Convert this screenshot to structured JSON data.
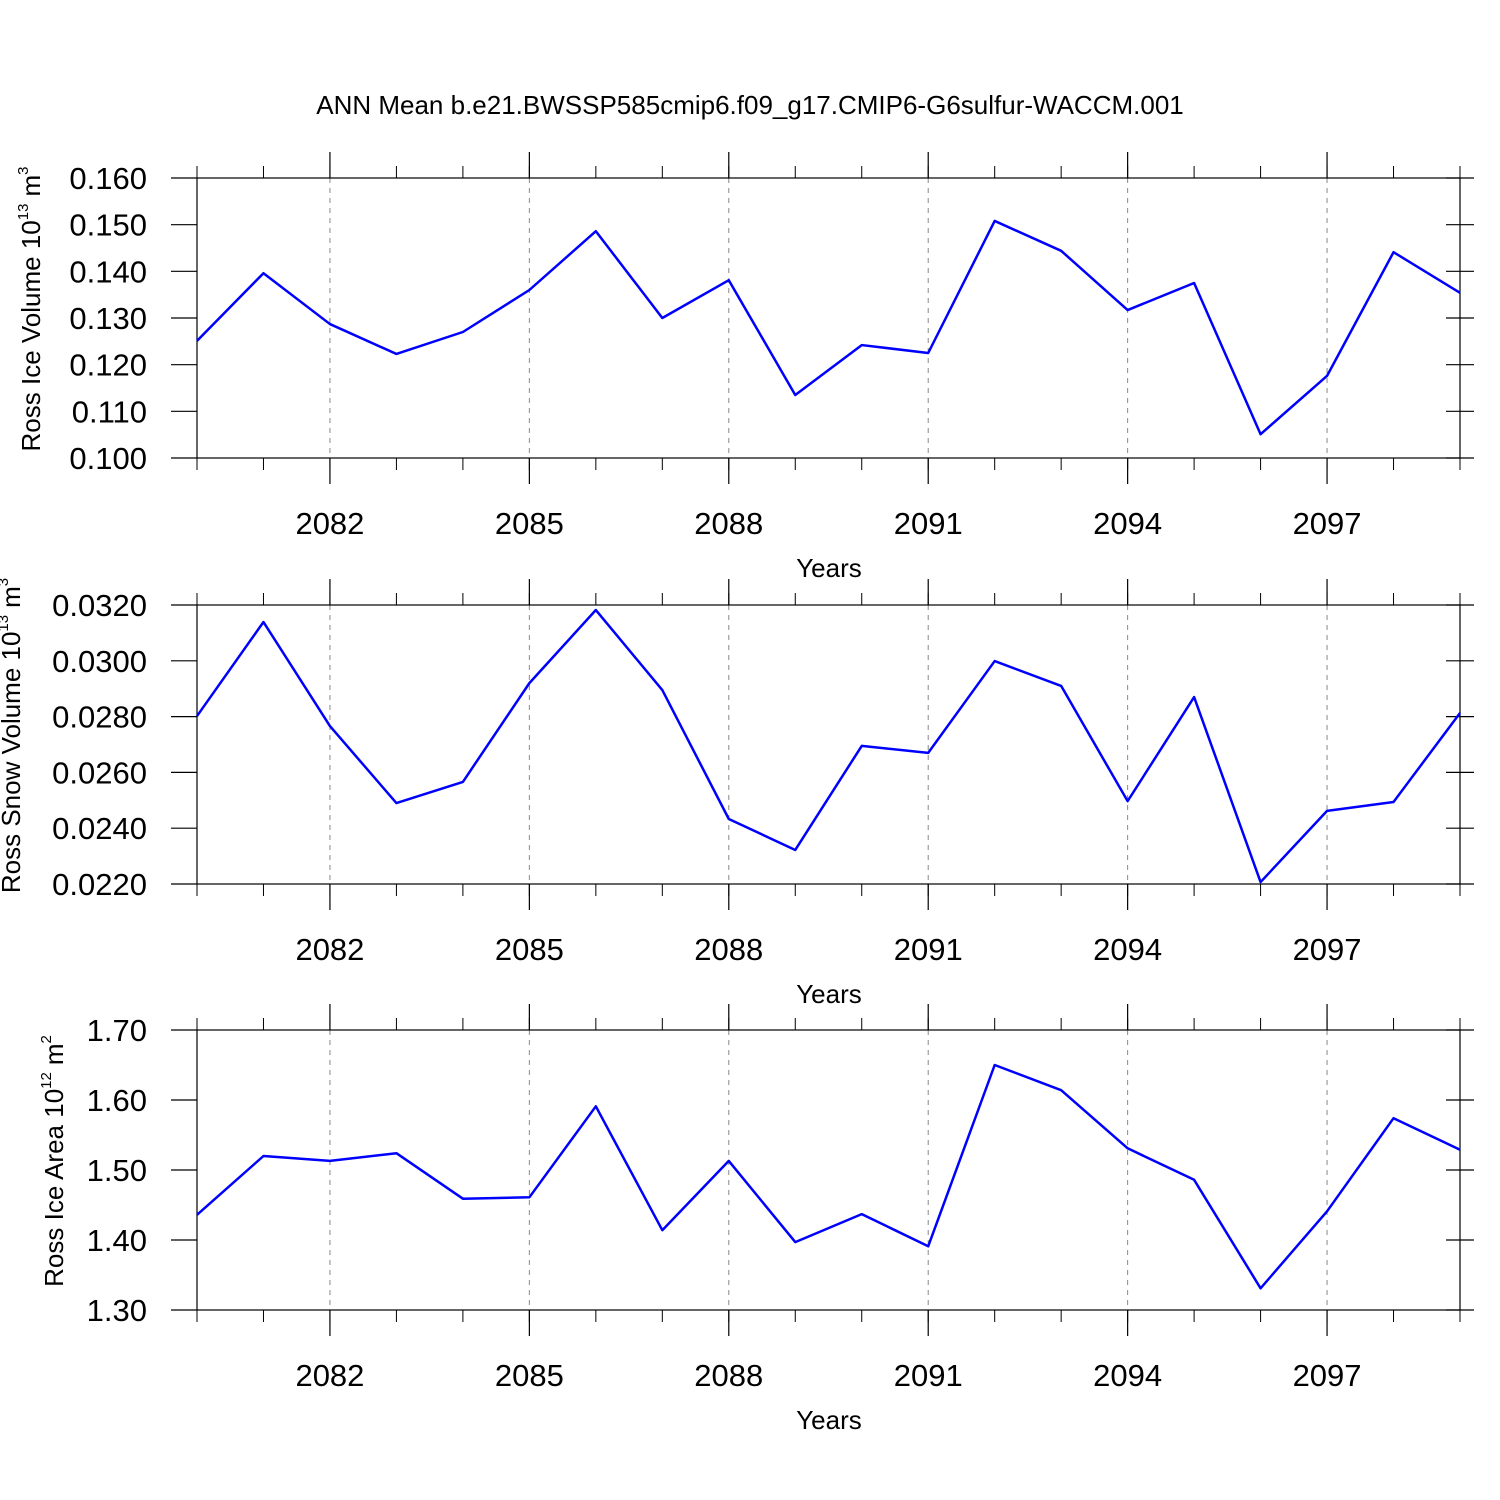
{
  "chart_data": [
    {
      "type": "line",
      "title": "ANN Mean b.e21.BWSSP585cmip6.f09_g17.CMIP6-G6sulfur-WACCM.001",
      "xlabel": "Years",
      "ylabel": {
        "base": "Ross Ice Volume 10",
        "power": "13",
        "unit": "m",
        "unit_power": "3"
      },
      "x": [
        2080,
        2081,
        2082,
        2083,
        2084,
        2085,
        2086,
        2087,
        2088,
        2089,
        2090,
        2091,
        2092,
        2093,
        2094,
        2095,
        2096,
        2097,
        2098,
        2099
      ],
      "values": [
        0.1251,
        0.1396,
        0.1287,
        0.1223,
        0.127,
        0.136,
        0.1486,
        0.13,
        0.1381,
        0.1135,
        0.1242,
        0.1225,
        0.1508,
        0.1444,
        0.1317,
        0.1375,
        0.1051,
        0.1176,
        0.1441,
        0.1354
      ],
      "color": "#0000ff",
      "xlim": [
        2080,
        2099
      ],
      "xticks": [
        2082,
        2085,
        2088,
        2091,
        2094,
        2097
      ],
      "ylim": [
        0.1,
        0.16
      ],
      "yticks": [
        {
          "value": 0.1,
          "label": "0.100"
        },
        {
          "value": 0.11,
          "label": "0.110"
        },
        {
          "value": 0.12,
          "label": "0.120"
        },
        {
          "value": 0.13,
          "label": "0.130"
        },
        {
          "value": 0.14,
          "label": "0.140"
        },
        {
          "value": 0.15,
          "label": "0.150"
        },
        {
          "value": 0.16,
          "label": "0.160"
        }
      ],
      "grid": true
    },
    {
      "type": "line",
      "xlabel": "Years",
      "ylabel": {
        "base": "Ross Snow Volume 10",
        "power": "13",
        "unit": "m",
        "unit_power": "3"
      },
      "x": [
        2080,
        2081,
        2082,
        2083,
        2084,
        2085,
        2086,
        2087,
        2088,
        2089,
        2090,
        2091,
        2092,
        2093,
        2094,
        2095,
        2096,
        2097,
        2098,
        2099
      ],
      "values": [
        0.02802,
        0.03139,
        0.02766,
        0.0249,
        0.02566,
        0.0292,
        0.03182,
        0.02895,
        0.02433,
        0.02322,
        0.02695,
        0.0267,
        0.02999,
        0.0291,
        0.02497,
        0.0287,
        0.02207,
        0.02462,
        0.02494,
        0.02813
      ],
      "color": "#0000ff",
      "xlim": [
        2080,
        2099
      ],
      "xticks": [
        2082,
        2085,
        2088,
        2091,
        2094,
        2097
      ],
      "ylim": [
        0.022,
        0.032
      ],
      "yticks": [
        {
          "value": 0.022,
          "label": "0.0220"
        },
        {
          "value": 0.024,
          "label": "0.0240"
        },
        {
          "value": 0.026,
          "label": "0.0260"
        },
        {
          "value": 0.028,
          "label": "0.0280"
        },
        {
          "value": 0.03,
          "label": "0.0300"
        },
        {
          "value": 0.032,
          "label": "0.0320"
        }
      ],
      "grid": true
    },
    {
      "type": "line",
      "xlabel": "Years",
      "ylabel": {
        "base": "Ross Ice Area 10",
        "power": "12",
        "unit": "m",
        "unit_power": "2"
      },
      "x": [
        2080,
        2081,
        2082,
        2083,
        2084,
        2085,
        2086,
        2087,
        2088,
        2089,
        2090,
        2091,
        2092,
        2093,
        2094,
        2095,
        2096,
        2097,
        2098,
        2099
      ],
      "values": [
        1.436,
        1.52,
        1.513,
        1.524,
        1.459,
        1.461,
        1.591,
        1.414,
        1.513,
        1.397,
        1.437,
        1.391,
        1.65,
        1.614,
        1.531,
        1.486,
        1.331,
        1.441,
        1.574,
        1.529
      ],
      "color": "#0000ff",
      "xlim": [
        2080,
        2099
      ],
      "xticks": [
        2082,
        2085,
        2088,
        2091,
        2094,
        2097
      ],
      "ylim": [
        1.3,
        1.7
      ],
      "yticks": [
        {
          "value": 1.3,
          "label": "1.30"
        },
        {
          "value": 1.4,
          "label": "1.40"
        },
        {
          "value": 1.5,
          "label": "1.50"
        },
        {
          "value": 1.6,
          "label": "1.60"
        },
        {
          "value": 1.7,
          "label": "1.70"
        }
      ],
      "grid": true
    }
  ]
}
